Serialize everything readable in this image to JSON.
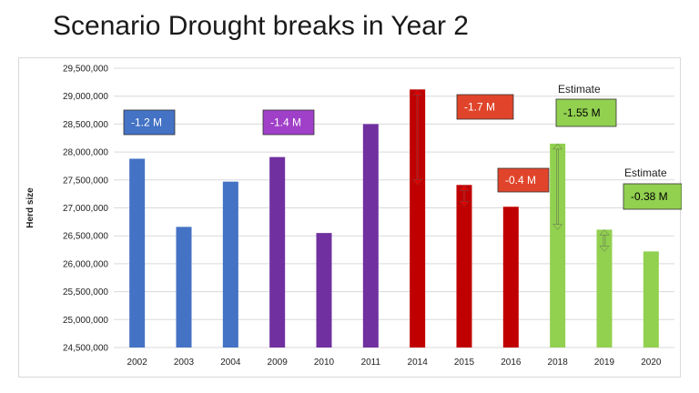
{
  "page": {
    "title": "Scenario Drought breaks in Year 2"
  },
  "chart_data": {
    "type": "bar",
    "categories": [
      "2002",
      "2003",
      "2004",
      "2009",
      "2010",
      "2011",
      "2014",
      "2015",
      "2016",
      "2018",
      "2019",
      "2020"
    ],
    "values": [
      27880000,
      26660000,
      27470000,
      27910000,
      26550000,
      28500000,
      29120000,
      27410000,
      27020000,
      28150000,
      26610000,
      26220000
    ],
    "bar_colors": [
      "#4472C4",
      "#4472C4",
      "#4472C4",
      "#7030A0",
      "#7030A0",
      "#7030A0",
      "#C00000",
      "#C00000",
      "#C00000",
      "#92D050",
      "#92D050",
      "#92D050"
    ],
    "ylabel": "Herd size",
    "ylim": [
      24500000,
      29500000
    ],
    "ytick_step": 500000,
    "ytick_labels": [
      "24,500,000",
      "25,000,000",
      "25,500,000",
      "26,000,000",
      "26,500,000",
      "27,000,000",
      "27,500,000",
      "28,000,000",
      "28,500,000",
      "29,000,000",
      "29,500,000"
    ],
    "grid": true,
    "annotations": [
      {
        "text": "-1.2 M",
        "near": "2002",
        "fill": "#4472C4",
        "text_color": "#ffffff"
      },
      {
        "text": "-1.4 M",
        "near": "2009",
        "fill": "#A040C8",
        "text_color": "#ffffff"
      },
      {
        "text": "-1.7 M",
        "near": "2014",
        "fill": "#E0452B",
        "text_color": "#ffffff"
      },
      {
        "text": "-0.4 M",
        "near": "2015",
        "fill": "#E0452B",
        "text_color": "#ffffff"
      },
      {
        "text": "-1.55 M",
        "near": "2018",
        "fill": "#92D050",
        "text_color": "#000000",
        "note": "Estimate"
      },
      {
        "text": "-0.38 M",
        "near": "2019",
        "fill": "#92D050",
        "text_color": "#000000",
        "note": "Estimate"
      }
    ],
    "change_arrows": [
      {
        "from_value": 29120000,
        "to_value": 27410000,
        "color": "#E00000"
      },
      {
        "from_value": 27410000,
        "to_value": 27020000,
        "color": "#E00000"
      },
      {
        "from_value": 28150000,
        "to_value": 26610000,
        "color": "#92D050"
      },
      {
        "from_value": 26610000,
        "to_value": 26220000,
        "color": "#92D050"
      }
    ]
  }
}
